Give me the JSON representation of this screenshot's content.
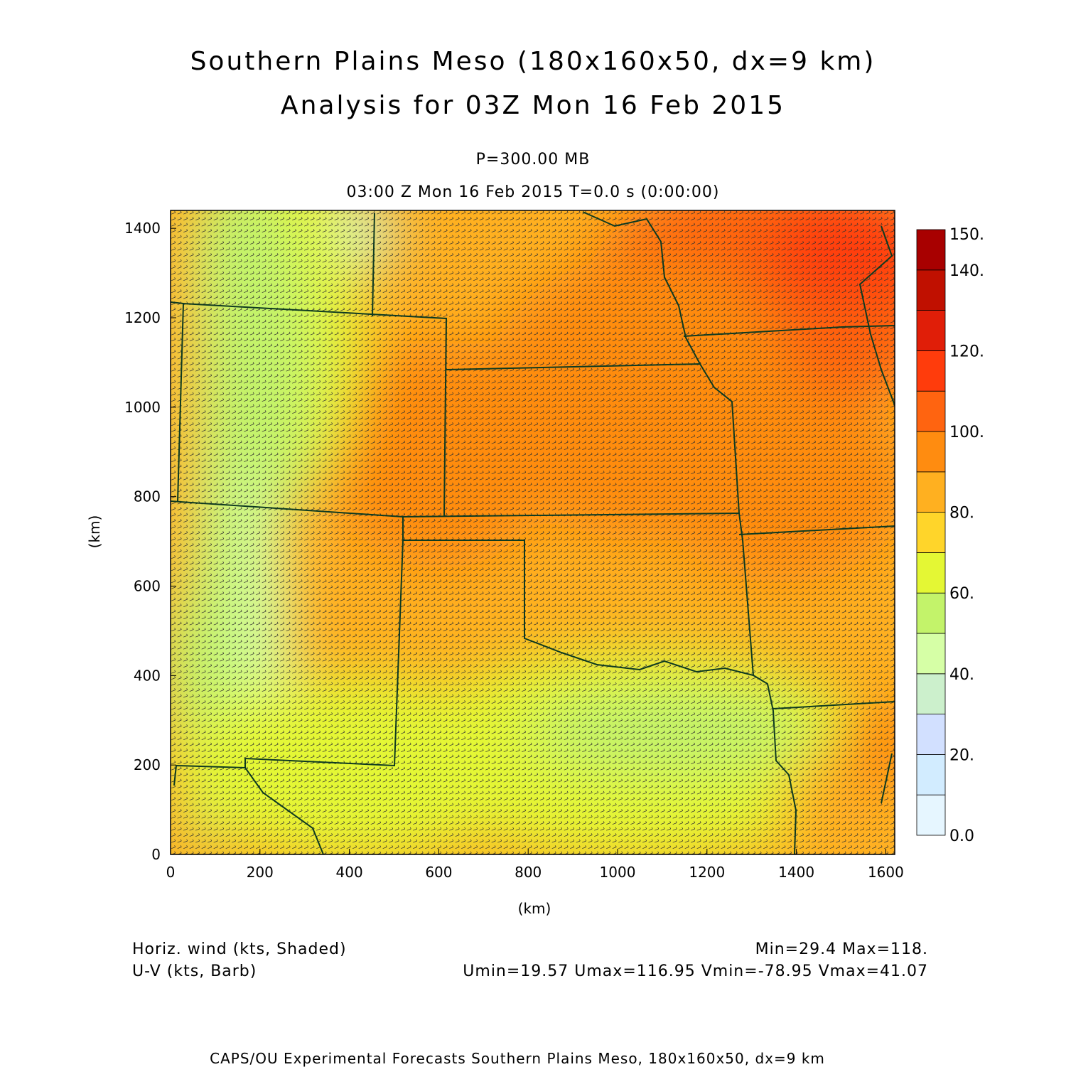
{
  "title_line1": "Southern Plains Meso (180x160x50, dx=9 km)",
  "title_line2": "Analysis for 03Z Mon 16 Feb 2015",
  "level": "P=300.00 MB",
  "time_line": "03:00 Z Mon 16 Feb 2015    T=0.0 s (0:00:00)",
  "footer_left1": "Horiz. wind (kts, Shaded)",
  "footer_left2": "U-V (kts, Barb)",
  "footer_right1": "Min=29.4 Max=118.",
  "footer_right2": "Umin=19.57 Umax=116.95 Vmin=-78.95 Vmax=41.07",
  "credit": "CAPS/OU Experimental Forecasts  Southern Plains Meso, 180x160x50, dx=9 km",
  "chart_data": {
    "type": "heatmap",
    "xlabel": "(km)",
    "ylabel": "(km)",
    "xlim": [
      0,
      1620
    ],
    "ylim": [
      0,
      1440
    ],
    "xticks": [
      "0",
      "200",
      "400",
      "600",
      "800",
      "1000",
      "1200",
      "1400",
      "1600"
    ],
    "yticks": [
      "0",
      "200",
      "400",
      "600",
      "800",
      "1000",
      "1200",
      "1400"
    ],
    "colorbar": {
      "range": [
        0,
        150
      ],
      "step": 10,
      "labels": [
        "0.0",
        "20.",
        "40.",
        "60.",
        "80.",
        "100.",
        "120.",
        "140.",
        "150."
      ],
      "colors": [
        "#e6f6ff",
        "#d2ecff",
        "#d2e0ff",
        "#ccf0cc",
        "#d6ffa6",
        "#c3f36a",
        "#e4f734",
        "#ffd52a",
        "#ffb020",
        "#ff8c10",
        "#ff6410",
        "#ff3c0c",
        "#e01e08",
        "#c01000",
        "#a80000"
      ]
    }
  }
}
